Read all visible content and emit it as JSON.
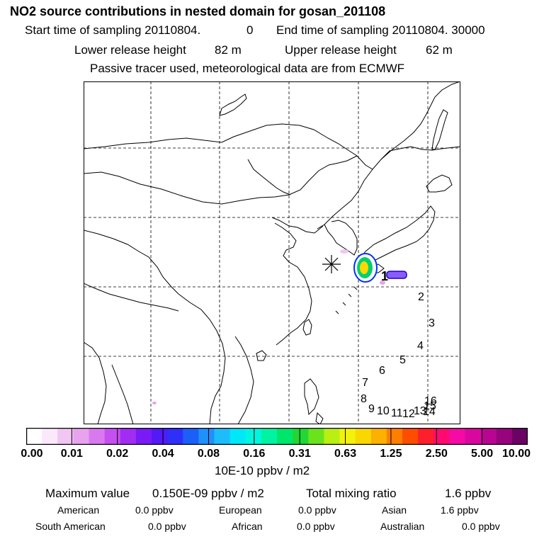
{
  "header": {
    "title": "NO2 source contributions in nested domain for gosan_201108",
    "start_label": "Start time of sampling 20110804.",
    "start_value": "0",
    "end_label": "End time of sampling 20110804. 30000",
    "lower_label": "Lower release height",
    "lower_value": "82 m",
    "upper_label": "Upper release height",
    "upper_value": "62 m",
    "note": "Passive tracer used, meteorological data are from ECMWF"
  },
  "map": {
    "trajectory_labels": [
      "1",
      "2",
      "3",
      "4",
      "5",
      "6",
      "7",
      "8",
      "9",
      "10",
      "11",
      "12",
      "13",
      "14",
      "15",
      "16"
    ],
    "release_marker": "asterisk",
    "colors": {
      "coast": "#000000",
      "grid": "#000000",
      "plume_core": "#ffd800",
      "plume_mid": "#00d070",
      "plume_edge": "#0030ff"
    }
  },
  "colorbar": {
    "colors": [
      "#ffffff",
      "#fbe8fb",
      "#f2c6f2",
      "#e7a3ee",
      "#d979ef",
      "#c450f0",
      "#a22df2",
      "#7a1bf5",
      "#5319f7",
      "#2e2ff9",
      "#1b5ff9",
      "#1e91fb",
      "#1dbdfb",
      "#00e8f8",
      "#00f6de",
      "#00f3a3",
      "#00e66c",
      "#21d635",
      "#6be31c",
      "#b9ef12",
      "#f2f20c",
      "#fbd702",
      "#fcb000",
      "#fd7f00",
      "#fd4d00",
      "#fe1f2c",
      "#ff0a71",
      "#f40aa5",
      "#d8089f",
      "#b90690",
      "#96047e",
      "#6c0265"
    ],
    "tick_labels": [
      "0.00",
      "0.01",
      "0.02",
      "0.04",
      "0.08",
      "0.16",
      "0.31",
      "0.63",
      "1.25",
      "2.50",
      "5.00",
      "10.00"
    ],
    "units": "10E-10 ppbv / m2"
  },
  "footer": {
    "max_label": "Maximum value",
    "max_value": "0.150E-09 ppbv / m2",
    "total_label": "Total mixing ratio",
    "total_value": "1.6 ppbv",
    "regions": [
      {
        "name": "American",
        "value": "0.0 ppbv"
      },
      {
        "name": "European",
        "value": "0.0 ppbv"
      },
      {
        "name": "Asian",
        "value": "1.6 ppbv"
      },
      {
        "name": "South American",
        "value": "0.0 ppbv"
      },
      {
        "name": "African",
        "value": "0.0 ppbv"
      },
      {
        "name": "Australian",
        "value": "0.0 ppbv"
      }
    ]
  }
}
